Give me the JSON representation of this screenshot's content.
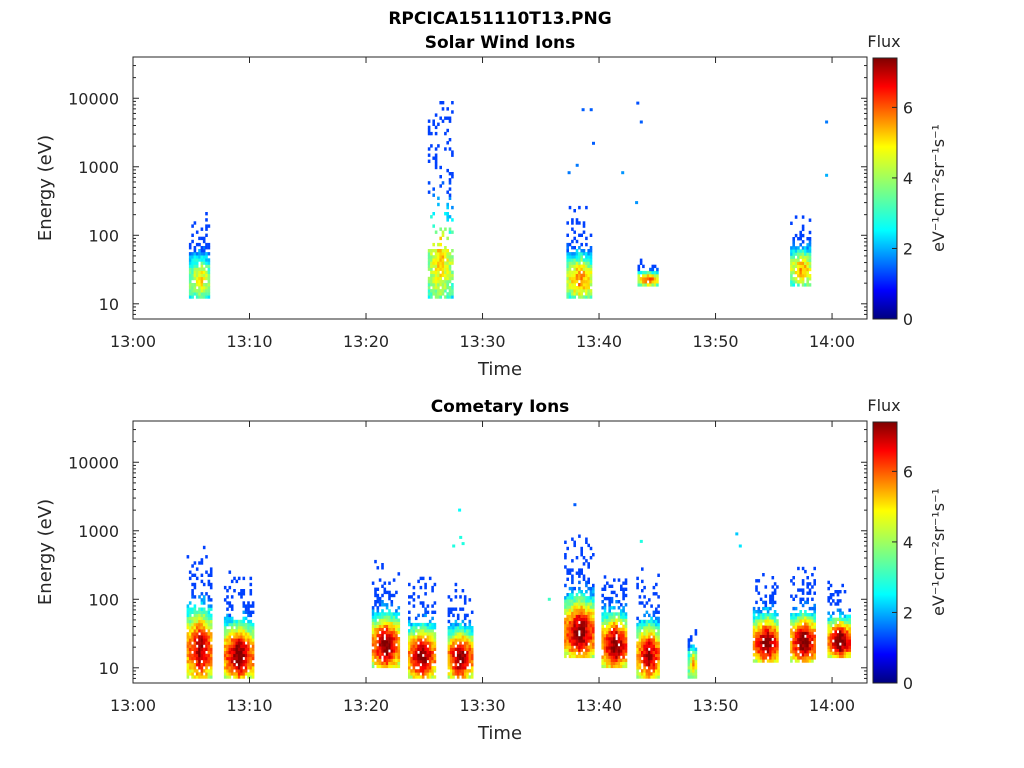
{
  "figure": {
    "title": "RPCICA151110T13.PNG"
  },
  "colormap": {
    "name": "jet",
    "stops": [
      "#00007f",
      "#0000ff",
      "#007fff",
      "#00ffff",
      "#7fff7f",
      "#ffff00",
      "#ff7f00",
      "#ff0000",
      "#7f0000"
    ]
  },
  "chart_data": [
    {
      "type": "heatmap",
      "title": "Solar Wind Ions",
      "xlabel": "Time",
      "ylabel": "Energy (eV)",
      "x_ticks": [
        "13:00",
        "13:10",
        "13:20",
        "13:30",
        "13:40",
        "13:50",
        "14:00"
      ],
      "y_ticks": [
        "10",
        "100",
        "1000",
        "10000"
      ],
      "y_scale": "log",
      "xlim_minutes": [
        0,
        63
      ],
      "ylim": [
        6,
        40000
      ],
      "colorbar": {
        "title": "Flux",
        "label": "eV⁻¹cm⁻²sr⁻¹s⁻¹",
        "ticks": [
          "0",
          "2",
          "4",
          "6"
        ],
        "range": [
          0,
          7.4
        ]
      },
      "bursts": [
        {
          "t": 4.8,
          "dur": 1.8,
          "emin": 12,
          "emax": 250,
          "peak": 4.2
        },
        {
          "t": 25.3,
          "dur": 2.0,
          "emin": 12,
          "emax": 9000,
          "peak": 4.5,
          "sparse_high": true
        },
        {
          "t": 37.2,
          "dur": 2.2,
          "emin": 12,
          "emax": 260,
          "peak": 5.0
        },
        {
          "t": 43.3,
          "dur": 1.8,
          "emin": 18,
          "emax": 45,
          "peak": 5.6
        },
        {
          "t": 56.4,
          "dur": 1.8,
          "emin": 18,
          "emax": 250,
          "peak": 4.8
        }
      ],
      "scatter_points": [
        {
          "t": 39.2,
          "e": 6800,
          "v": 1.6
        },
        {
          "t": 38.5,
          "e": 6800,
          "v": 1.6
        },
        {
          "t": 39.4,
          "e": 2200,
          "v": 1.6
        },
        {
          "t": 38.0,
          "e": 1050,
          "v": 1.8
        },
        {
          "t": 37.3,
          "e": 820,
          "v": 1.8
        },
        {
          "t": 41.9,
          "e": 820,
          "v": 2.0
        },
        {
          "t": 43.2,
          "e": 8500,
          "v": 1.5
        },
        {
          "t": 43.5,
          "e": 4500,
          "v": 1.6
        },
        {
          "t": 43.1,
          "e": 300,
          "v": 2.0
        },
        {
          "t": 59.4,
          "e": 4500,
          "v": 1.8
        },
        {
          "t": 59.4,
          "e": 750,
          "v": 2.2
        }
      ]
    },
    {
      "type": "heatmap",
      "title": "Cometary Ions",
      "xlabel": "Time",
      "ylabel": "Energy (eV)",
      "x_ticks": [
        "13:00",
        "13:10",
        "13:20",
        "13:30",
        "13:40",
        "13:50",
        "14:00"
      ],
      "y_ticks": [
        "10",
        "100",
        "1000",
        "10000"
      ],
      "y_scale": "log",
      "xlim_minutes": [
        0,
        63
      ],
      "ylim": [
        6,
        40000
      ],
      "colorbar": {
        "title": "Flux",
        "label": "eV⁻¹cm⁻²sr⁻¹s⁻¹",
        "ticks": [
          "0",
          "2",
          "4",
          "6"
        ],
        "range": [
          0,
          7.4
        ]
      },
      "bursts": [
        {
          "t": 4.6,
          "dur": 2.2,
          "emin": 7,
          "emax": 800,
          "peak": 6.6
        },
        {
          "t": 7.8,
          "dur": 2.4,
          "emin": 7,
          "emax": 300,
          "peak": 7.0
        },
        {
          "t": 20.5,
          "dur": 2.2,
          "emin": 10,
          "emax": 380,
          "peak": 7.0
        },
        {
          "t": 23.6,
          "dur": 2.2,
          "emin": 7,
          "emax": 250,
          "peak": 7.0
        },
        {
          "t": 27.0,
          "dur": 2.0,
          "emin": 7,
          "emax": 200,
          "peak": 7.0
        },
        {
          "t": 37.0,
          "dur": 2.6,
          "emin": 14,
          "emax": 850,
          "peak": 7.0
        },
        {
          "t": 40.2,
          "dur": 2.2,
          "emin": 10,
          "emax": 380,
          "peak": 7.0
        },
        {
          "t": 43.2,
          "dur": 2.0,
          "emin": 7,
          "emax": 300,
          "peak": 6.6
        },
        {
          "t": 47.6,
          "dur": 0.8,
          "emin": 7,
          "emax": 60,
          "peak": 4.6
        },
        {
          "t": 53.2,
          "dur": 2.2,
          "emin": 12,
          "emax": 280,
          "peak": 7.0
        },
        {
          "t": 56.4,
          "dur": 2.2,
          "emin": 12,
          "emax": 320,
          "peak": 7.0
        },
        {
          "t": 59.6,
          "dur": 2.0,
          "emin": 14,
          "emax": 200,
          "peak": 7.2
        }
      ],
      "scatter_points": [
        {
          "t": 27.9,
          "e": 2000,
          "v": 2.8
        },
        {
          "t": 28.0,
          "e": 800,
          "v": 3.0
        },
        {
          "t": 27.4,
          "e": 600,
          "v": 3.0
        },
        {
          "t": 28.2,
          "e": 650,
          "v": 3.0
        },
        {
          "t": 37.8,
          "e": 2400,
          "v": 1.6
        },
        {
          "t": 43.5,
          "e": 700,
          "v": 3.0
        },
        {
          "t": 51.7,
          "e": 900,
          "v": 2.4
        },
        {
          "t": 52.0,
          "e": 600,
          "v": 2.6
        },
        {
          "t": 35.6,
          "e": 100,
          "v": 3.2
        }
      ]
    }
  ]
}
